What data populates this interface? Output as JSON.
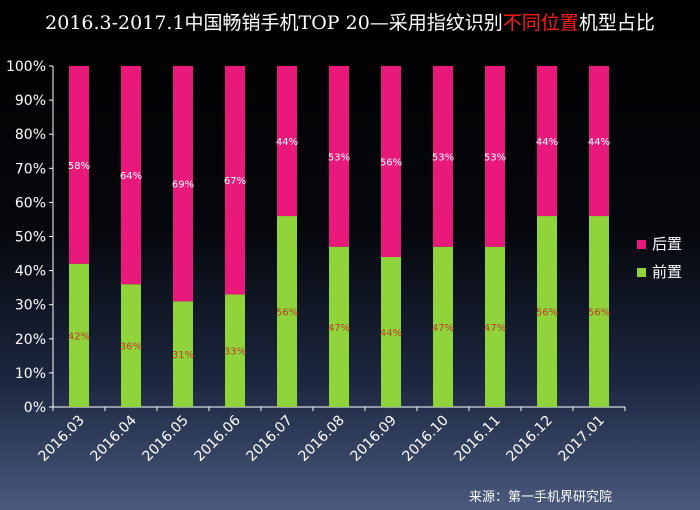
{
  "title": {
    "prefix": "2016.3-2017.1中国畅销手机TOP 20—采用指纹识别",
    "highlight": "不同位置",
    "suffix": "机型占比"
  },
  "source": "来源：第一手机界研究院",
  "colors": {
    "front": "#8ed43a",
    "back": "#e8197a",
    "highlight": "#ff1a1a",
    "front_label": "#c0392b",
    "back_label": "#ffffff"
  },
  "chart_data": {
    "type": "bar",
    "stacked": true,
    "categories": [
      "2016.03",
      "2016.04",
      "2016.05",
      "2016.06",
      "2016.07",
      "2016.08",
      "2016.09",
      "2016.10",
      "2016.11",
      "2016.12",
      "2017.01"
    ],
    "series": [
      {
        "name": "前置",
        "values": [
          42,
          36,
          31,
          33,
          56,
          47,
          44,
          47,
          47,
          56,
          56
        ],
        "labels": [
          "42%",
          "36%",
          "31%",
          "33%",
          "56%",
          "47%",
          "44%",
          "47%",
          "47%",
          "56%",
          "56%"
        ]
      },
      {
        "name": "后置",
        "values": [
          58,
          64,
          69,
          67,
          44,
          53,
          56,
          53,
          53,
          44,
          44
        ],
        "labels": [
          "58%",
          "64%",
          "69%",
          "67%",
          "44%",
          "53%",
          "56%",
          "53%",
          "53%",
          "44%",
          "44%"
        ]
      }
    ],
    "ylim": [
      0,
      100
    ],
    "yticks": [
      "0%",
      "10%",
      "20%",
      "30%",
      "40%",
      "50%",
      "60%",
      "70%",
      "80%",
      "90%",
      "100%"
    ],
    "legend": [
      "后置",
      "前置"
    ],
    "legend_position": "right"
  }
}
